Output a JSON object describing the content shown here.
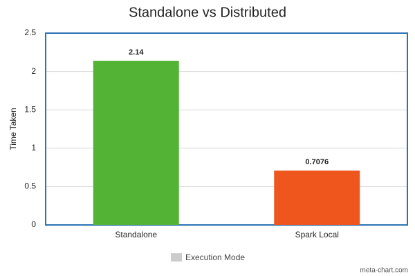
{
  "chart_data": {
    "type": "bar",
    "title": "Standalone vs Distributed",
    "y_label": "Time Taken",
    "categories": [
      "Standalone",
      "Spark Local"
    ],
    "series": [
      {
        "name": "Execution Mode",
        "legend_color": "#cccccc",
        "colors": [
          "#52b335",
          "#ee561e"
        ],
        "values": [
          2.14,
          0.7076
        ]
      }
    ],
    "ylim": [
      0,
      2.5
    ],
    "yticks": [
      0,
      0.5,
      1,
      1.5,
      2,
      2.5
    ],
    "grid": true,
    "legend": "bottom",
    "credit": "meta-chart.com"
  }
}
